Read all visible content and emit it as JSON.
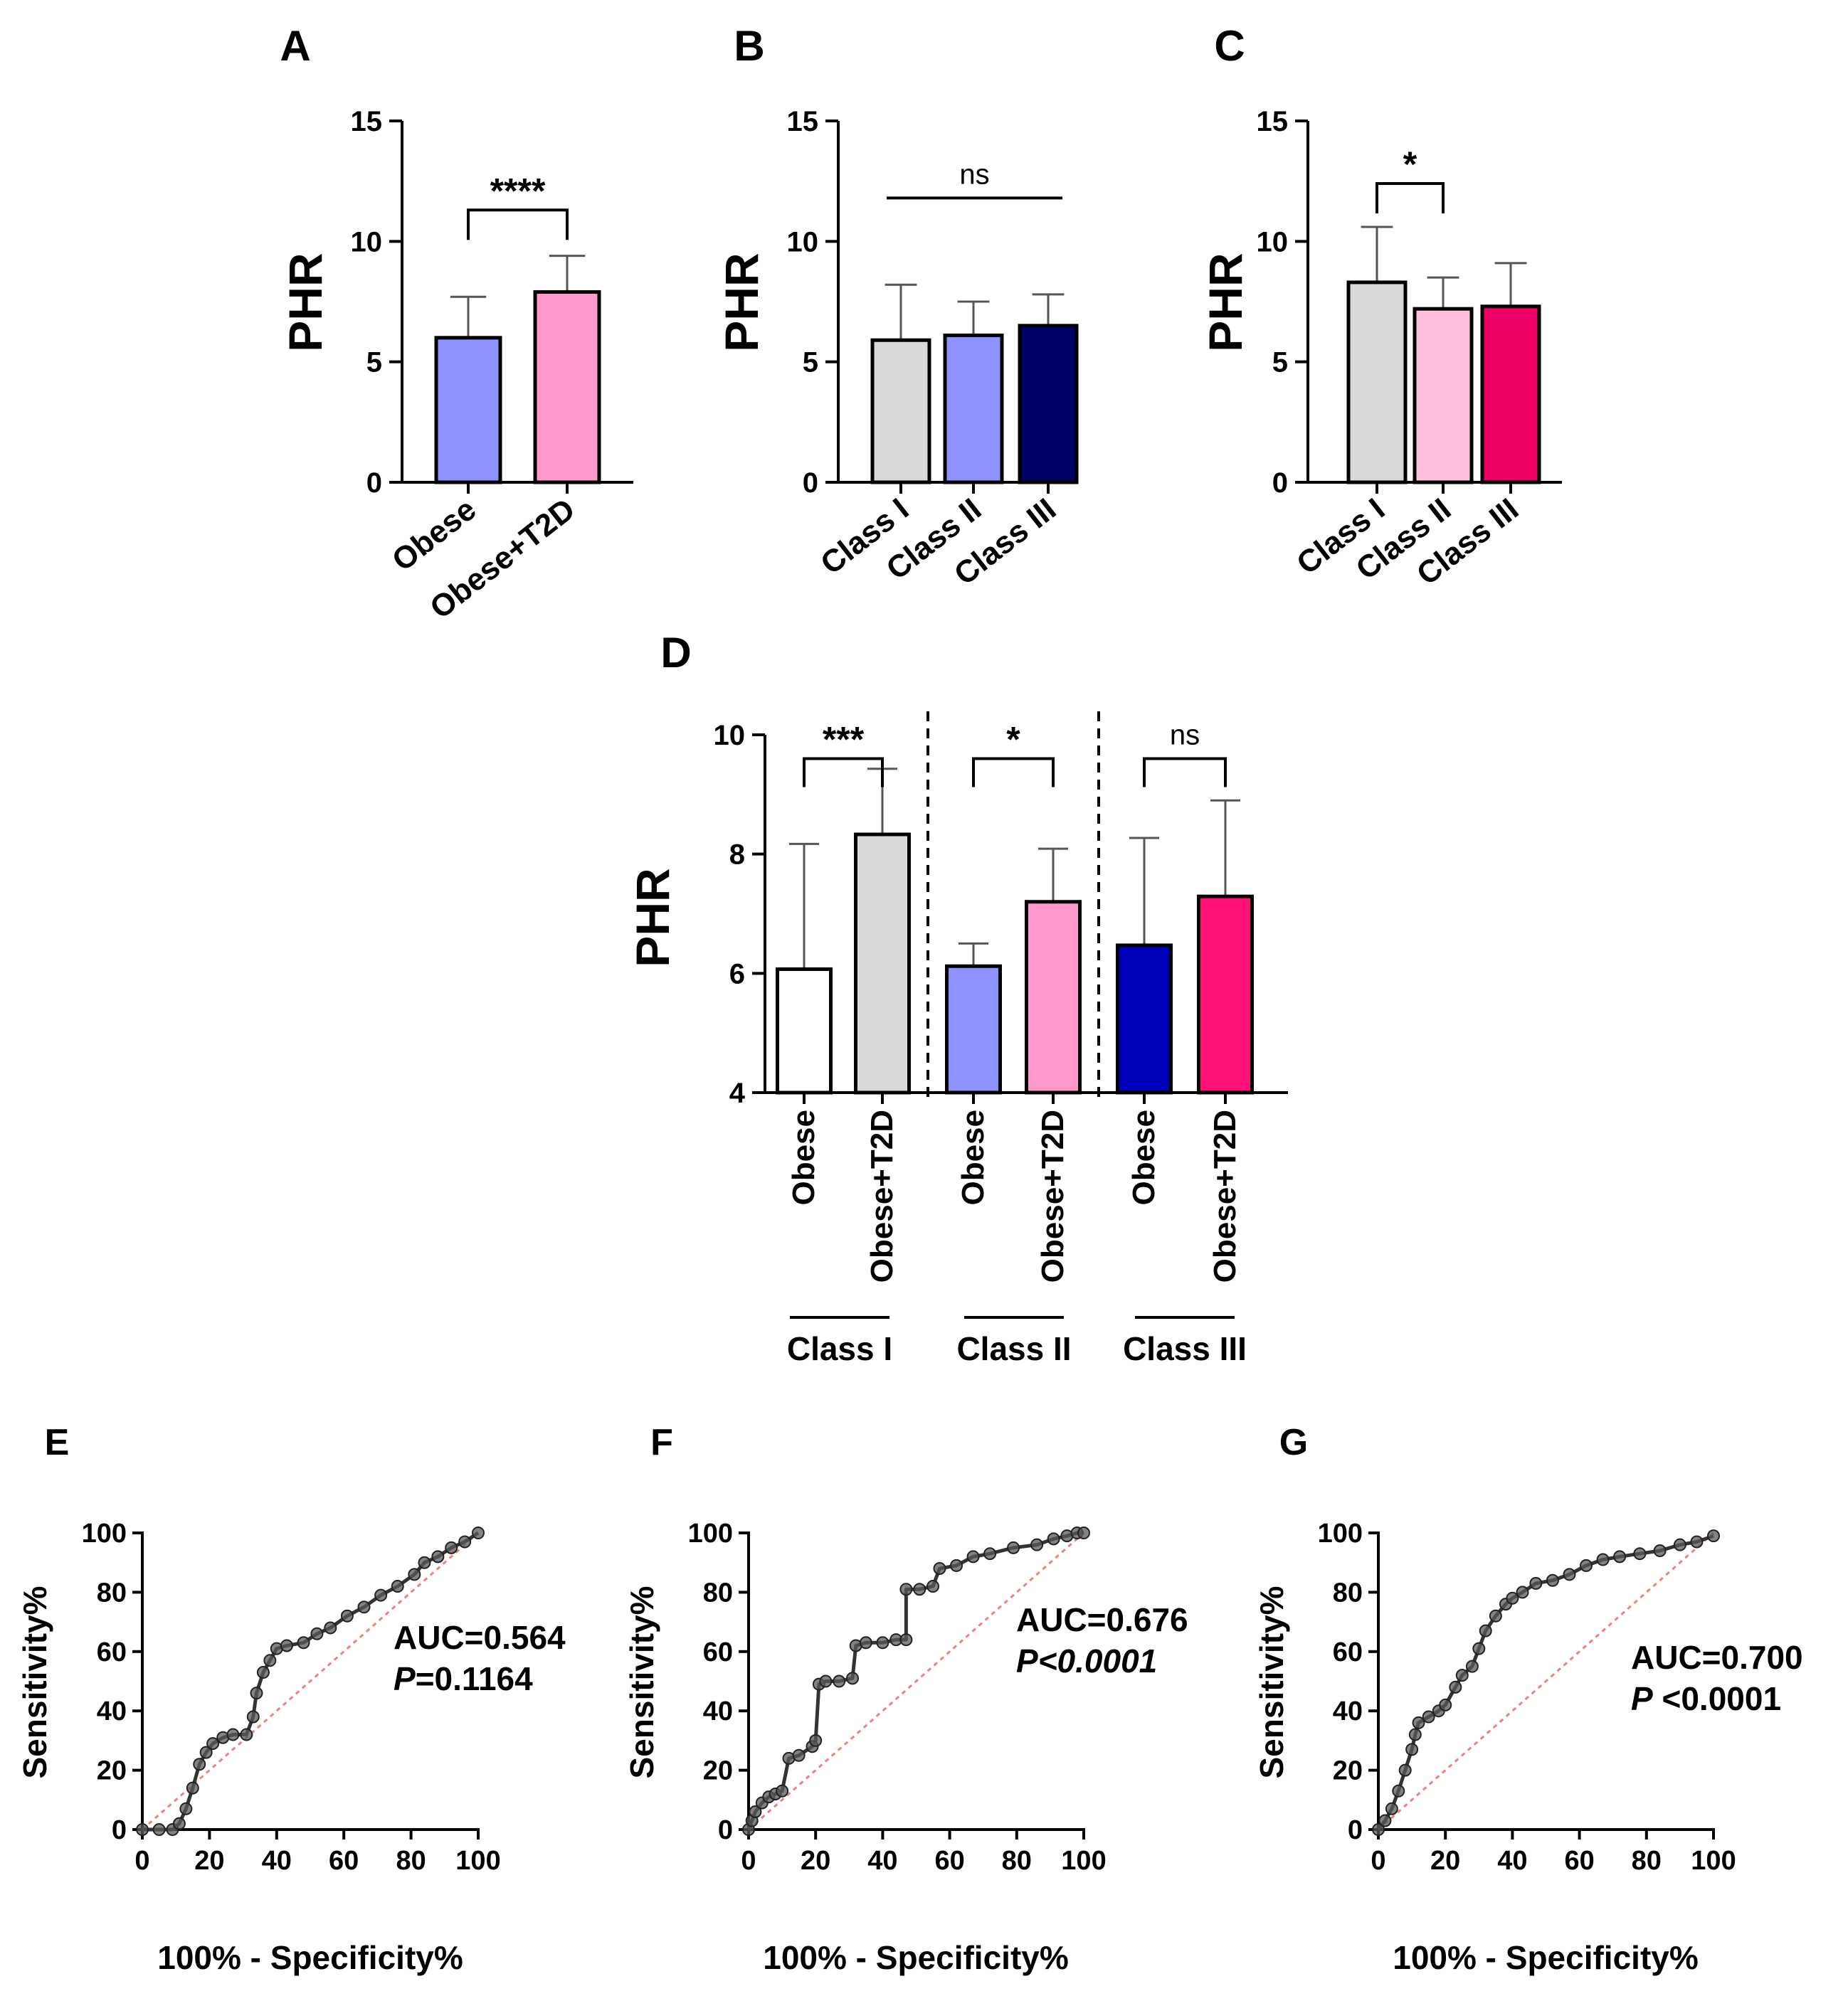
{
  "colors": {
    "axis": "#000000",
    "errorbar": "#555555",
    "roc_line": "#333333",
    "roc_marker": "#5a5a5a",
    "diagonal": "#f08080"
  },
  "chart_data": [
    {
      "id": "A",
      "type": "bar",
      "panel_label": "A",
      "ylabel": "PHR",
      "ylim": [
        0,
        15
      ],
      "yticks": [
        "0",
        "5",
        "10",
        "15"
      ],
      "categories": [
        "Obese",
        "Obese+T2D"
      ],
      "values": [
        6.0,
        7.9
      ],
      "errors": [
        1.7,
        1.5
      ],
      "bar_colors": [
        "#8e92ff",
        "#ff99cc"
      ],
      "significance": [
        {
          "from": 0,
          "to": 1,
          "label": "****",
          "y": 11.3
        }
      ]
    },
    {
      "id": "B",
      "type": "bar",
      "panel_label": "B",
      "ylabel": "PHR",
      "ylim": [
        0,
        15
      ],
      "yticks": [
        "0",
        "5",
        "10",
        "15"
      ],
      "categories": [
        "Class I",
        "Class II",
        "Class III"
      ],
      "values": [
        5.9,
        6.1,
        6.5
      ],
      "errors": [
        2.3,
        1.4,
        1.3
      ],
      "bar_colors": [
        "#d9d9d9",
        "#8e92ff",
        "#000066"
      ],
      "significance": [
        {
          "from": 0,
          "to": 2,
          "label": "ns",
          "y": 11.8,
          "style": "line"
        }
      ]
    },
    {
      "id": "C",
      "type": "bar",
      "panel_label": "C",
      "ylabel": "PHR",
      "ylim": [
        0,
        15
      ],
      "yticks": [
        "0",
        "5",
        "10",
        "15"
      ],
      "categories": [
        "Class I",
        "Class II",
        "Class III"
      ],
      "values": [
        8.3,
        7.2,
        7.3
      ],
      "errors": [
        2.3,
        1.3,
        1.8
      ],
      "bar_colors": [
        "#d9d9d9",
        "#ffc0dd",
        "#ee0066"
      ],
      "significance": [
        {
          "from": 0,
          "to": 1,
          "label": "*",
          "y": 12.4
        }
      ]
    },
    {
      "id": "D",
      "type": "bar",
      "panel_label": "D",
      "ylabel": "PHR",
      "ylim": [
        4,
        10
      ],
      "yticks": [
        "4",
        "6",
        "8",
        "10"
      ],
      "categories": [
        "Obese",
        "Obese+T2D",
        "Obese",
        "Obese+T2D",
        "Obese",
        "Obese+T2D"
      ],
      "values": [
        6.07,
        8.33,
        6.12,
        7.2,
        6.47,
        7.29
      ],
      "errors": [
        2.1,
        1.1,
        0.38,
        0.89,
        1.8,
        1.61
      ],
      "bar_colors": [
        "#ffffff",
        "#d9d9d9",
        "#8e92ff",
        "#ff99cc",
        "#0000bb",
        "#ff1177"
      ],
      "groups": [
        "Class I",
        "Class II",
        "Class III"
      ],
      "significance": [
        {
          "from": 0,
          "to": 1,
          "label": "***",
          "y": 9.6
        },
        {
          "from": 2,
          "to": 3,
          "label": "*",
          "y": 9.6
        },
        {
          "from": 4,
          "to": 5,
          "label": "ns",
          "y": 9.6
        }
      ]
    },
    {
      "id": "E",
      "type": "line",
      "panel_label": "E",
      "xlabel": "100% - Specificity%",
      "ylabel": "Sensitivity%",
      "xlim": [
        0,
        100
      ],
      "ylim": [
        0,
        100
      ],
      "xticks": [
        "0",
        "20",
        "40",
        "60",
        "80",
        "100"
      ],
      "yticks": [
        "0",
        "20",
        "40",
        "60",
        "80",
        "100"
      ],
      "auc_text": "AUC=0.564",
      "p_prefix": "P",
      "p_value": "=0.1164",
      "x": [
        0,
        5,
        9,
        11,
        13,
        15,
        17,
        19,
        21,
        24,
        27,
        31,
        33,
        34,
        36,
        38,
        40,
        43,
        48,
        52,
        56,
        61,
        66,
        71,
        76,
        81,
        84,
        88,
        92,
        96,
        100
      ],
      "y": [
        0,
        0,
        0,
        2,
        7,
        14,
        22,
        26,
        29,
        31,
        32,
        32,
        38,
        46,
        53,
        57,
        61,
        62,
        63,
        66,
        68,
        72,
        75,
        79,
        82,
        86,
        90,
        92,
        95,
        97,
        100
      ]
    },
    {
      "id": "F",
      "type": "line",
      "panel_label": "F",
      "xlabel": "100% - Specificity%",
      "ylabel": "Sensitivity%",
      "xlim": [
        0,
        100
      ],
      "ylim": [
        0,
        100
      ],
      "xticks": [
        "0",
        "20",
        "40",
        "60",
        "80",
        "100"
      ],
      "yticks": [
        "0",
        "20",
        "40",
        "60",
        "80",
        "100"
      ],
      "auc_text": "AUC=0.676",
      "p_prefix": "P",
      "p_value": "<0.0001",
      "x": [
        0,
        1,
        2,
        4,
        6,
        8,
        10,
        12,
        15,
        19,
        20,
        21,
        23,
        27,
        31,
        32,
        35,
        40,
        44,
        47,
        47,
        51,
        55,
        57,
        62,
        67,
        72,
        79,
        86,
        91,
        95,
        98,
        100
      ],
      "y": [
        0,
        3,
        6,
        9,
        11,
        12,
        13,
        24,
        25,
        28,
        30,
        49,
        50,
        50,
        51,
        62,
        63,
        63,
        64,
        64,
        81,
        81,
        82,
        88,
        89,
        92,
        93,
        95,
        96,
        98,
        99,
        100,
        100
      ]
    },
    {
      "id": "G",
      "type": "line",
      "panel_label": "G",
      "xlabel": "100% - Specificity%",
      "ylabel": "Sensitivity%",
      "xlim": [
        0,
        100
      ],
      "ylim": [
        0,
        100
      ],
      "xticks": [
        "0",
        "20",
        "40",
        "60",
        "80",
        "100"
      ],
      "yticks": [
        "0",
        "20",
        "40",
        "60",
        "80",
        "100"
      ],
      "auc_text": "AUC=0.700",
      "p_prefix": "P",
      "p_value": " <0.0001",
      "x": [
        0,
        2,
        4,
        6,
        8,
        10,
        11,
        12,
        15,
        18,
        20,
        23,
        25,
        28,
        30,
        32,
        35,
        38,
        40,
        43,
        47,
        52,
        57,
        62,
        67,
        72,
        78,
        84,
        90,
        95,
        100
      ],
      "y": [
        0,
        3,
        7,
        13,
        20,
        27,
        32,
        36,
        38,
        40,
        42,
        48,
        52,
        55,
        61,
        67,
        72,
        76,
        78,
        80,
        83,
        84,
        86,
        89,
        91,
        92,
        93,
        94,
        96,
        97,
        99
      ]
    }
  ]
}
